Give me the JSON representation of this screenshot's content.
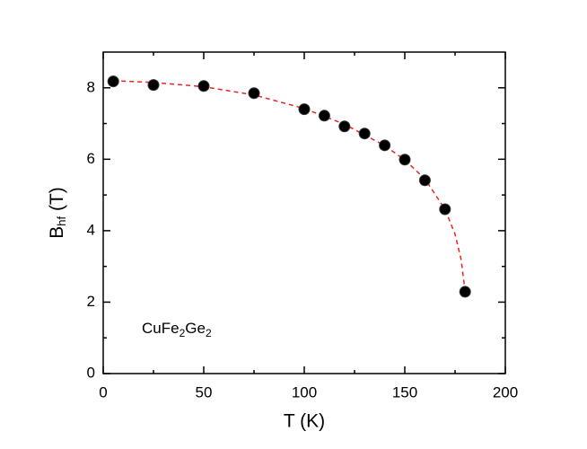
{
  "chart_data": {
    "type": "scatter",
    "xlabel": "T (K)",
    "ylabel_parts": [
      "B",
      "hf",
      " (T)"
    ],
    "annotation_parts": [
      "CuFe",
      "2",
      "Ge",
      "2"
    ],
    "xlim": [
      0,
      200
    ],
    "xticks": [
      0,
      50,
      100,
      150,
      200
    ],
    "xminorticks": [
      25,
      75,
      125,
      175
    ],
    "ylim": [
      0,
      9
    ],
    "yticks": [
      0,
      2,
      4,
      6,
      8
    ],
    "yminorticks": [
      1,
      3,
      5,
      7
    ],
    "series": [
      {
        "color": "#000000",
        "style": "markers",
        "x": [
          5,
          25,
          50,
          75,
          100,
          110,
          120,
          130,
          140,
          150,
          160,
          170,
          180
        ],
        "values": [
          8.18,
          8.08,
          8.05,
          7.85,
          7.4,
          7.22,
          6.92,
          6.72,
          6.39,
          5.99,
          5.41,
          4.6,
          2.29
        ]
      },
      {
        "color": "#e8261f",
        "style": "dashed-line",
        "x": [
          5,
          25,
          50,
          75,
          100,
          120,
          140,
          150,
          160,
          170,
          175,
          178,
          180
        ],
        "values": [
          8.2,
          8.15,
          8.03,
          7.8,
          7.42,
          6.98,
          6.38,
          5.98,
          5.45,
          4.6,
          3.9,
          3.2,
          2.3
        ]
      }
    ]
  }
}
